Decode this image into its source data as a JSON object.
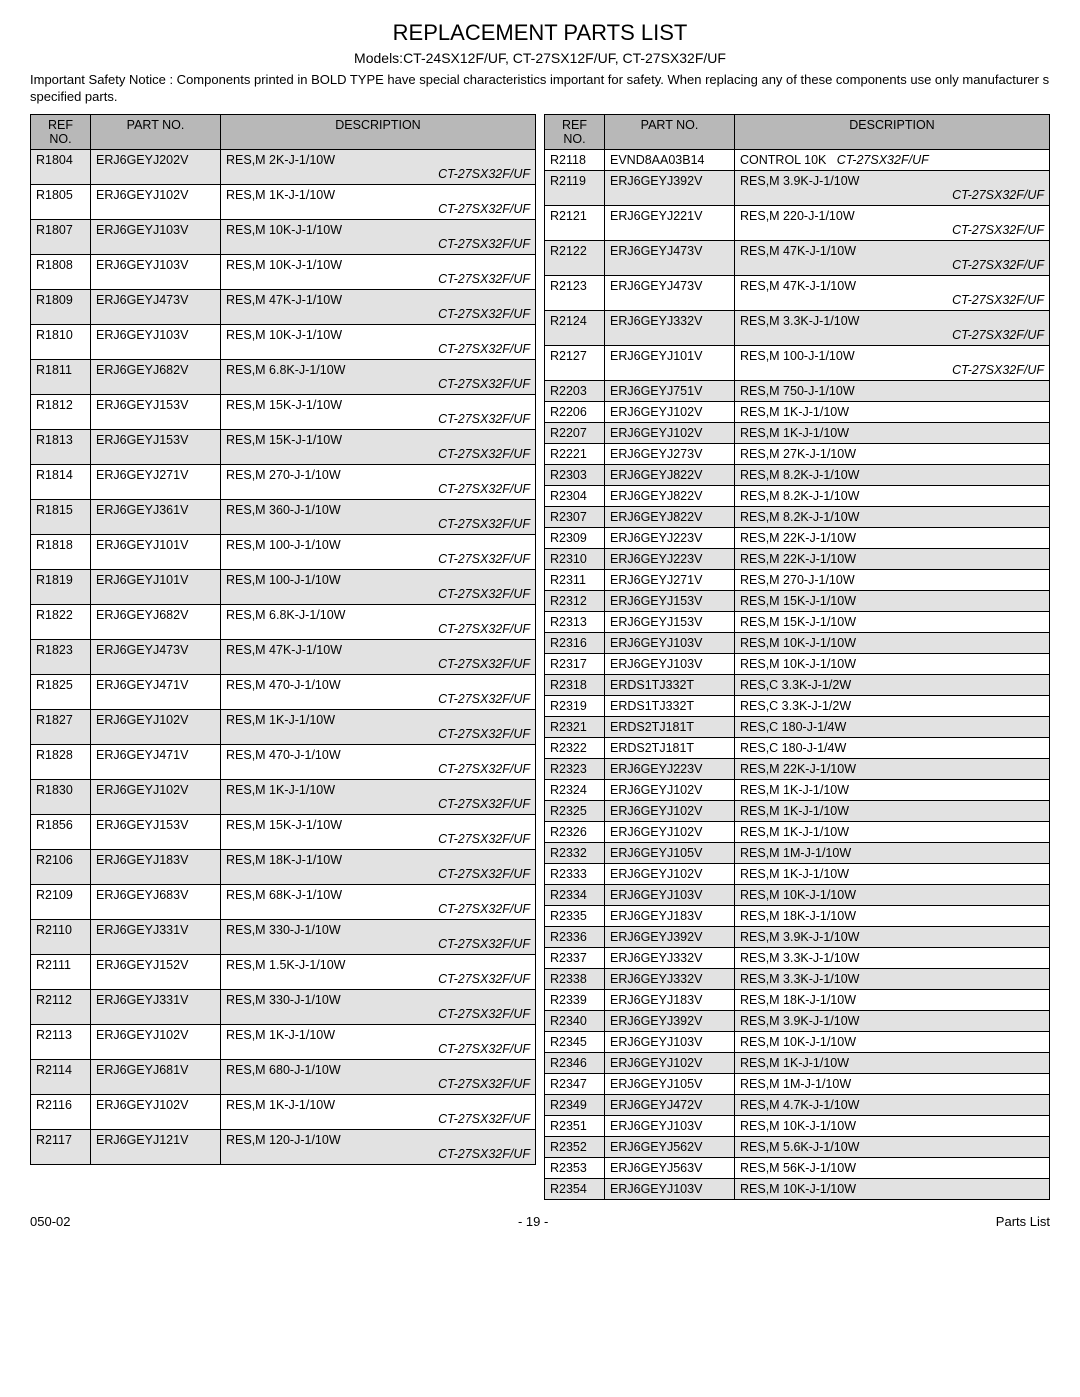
{
  "title": "REPLACEMENT PARTS LIST",
  "subtitle": "Models:CT-24SX12F/UF, CT-27SX12F/UF, CT-27SX32F/UF",
  "notice": "Important Safety Notice  : Components printed in BOLD TYPE have special characteristics important for safety.  When replacing any of these components use only manufacturer s specified parts.",
  "headers": {
    "ref": "REF NO.",
    "part": "PART NO.",
    "desc": "DESCRIPTION"
  },
  "footer": {
    "left": "050-02",
    "center": "- 19 -",
    "right": "Parts List"
  },
  "leftRows": [
    {
      "ref": "R1804",
      "part": "ERJ6GEYJ202V",
      "desc": "RES,M 2K-J-1/10W",
      "sub": "CT-27SX32F/UF",
      "shaded": true
    },
    {
      "ref": "R1805",
      "part": "ERJ6GEYJ102V",
      "desc": "RES,M 1K-J-1/10W",
      "sub": "CT-27SX32F/UF",
      "shaded": false
    },
    {
      "ref": "R1807",
      "part": "ERJ6GEYJ103V",
      "desc": "RES,M 10K-J-1/10W",
      "sub": "CT-27SX32F/UF",
      "shaded": true
    },
    {
      "ref": "R1808",
      "part": "ERJ6GEYJ103V",
      "desc": "RES,M 10K-J-1/10W",
      "sub": "CT-27SX32F/UF",
      "shaded": false
    },
    {
      "ref": "R1809",
      "part": "ERJ6GEYJ473V",
      "desc": "RES,M 47K-J-1/10W",
      "sub": "CT-27SX32F/UF",
      "shaded": true
    },
    {
      "ref": "R1810",
      "part": "ERJ6GEYJ103V",
      "desc": "RES,M 10K-J-1/10W",
      "sub": "CT-27SX32F/UF",
      "shaded": false
    },
    {
      "ref": "R1811",
      "part": "ERJ6GEYJ682V",
      "desc": "RES,M 6.8K-J-1/10W",
      "sub": "CT-27SX32F/UF",
      "shaded": true
    },
    {
      "ref": "R1812",
      "part": "ERJ6GEYJ153V",
      "desc": "RES,M 15K-J-1/10W",
      "sub": "CT-27SX32F/UF",
      "shaded": false
    },
    {
      "ref": "R1813",
      "part": "ERJ6GEYJ153V",
      "desc": "RES,M 15K-J-1/10W",
      "sub": "CT-27SX32F/UF",
      "shaded": true
    },
    {
      "ref": "R1814",
      "part": "ERJ6GEYJ271V",
      "desc": "RES,M 270-J-1/10W",
      "sub": "CT-27SX32F/UF",
      "shaded": false
    },
    {
      "ref": "R1815",
      "part": "ERJ6GEYJ361V",
      "desc": "RES,M 360-J-1/10W",
      "sub": "CT-27SX32F/UF",
      "shaded": true
    },
    {
      "ref": "R1818",
      "part": "ERJ6GEYJ101V",
      "desc": "RES,M 100-J-1/10W",
      "sub": "CT-27SX32F/UF",
      "shaded": false
    },
    {
      "ref": "R1819",
      "part": "ERJ6GEYJ101V",
      "desc": "RES,M 100-J-1/10W",
      "sub": "CT-27SX32F/UF",
      "shaded": true
    },
    {
      "ref": "R1822",
      "part": "ERJ6GEYJ682V",
      "desc": "RES,M 6.8K-J-1/10W",
      "sub": "CT-27SX32F/UF",
      "shaded": false
    },
    {
      "ref": "R1823",
      "part": "ERJ6GEYJ473V",
      "desc": "RES,M 47K-J-1/10W",
      "sub": "CT-27SX32F/UF",
      "shaded": true
    },
    {
      "ref": "R1825",
      "part": "ERJ6GEYJ471V",
      "desc": "RES,M 470-J-1/10W",
      "sub": "CT-27SX32F/UF",
      "shaded": false
    },
    {
      "ref": "R1827",
      "part": "ERJ6GEYJ102V",
      "desc": "RES,M 1K-J-1/10W",
      "sub": "CT-27SX32F/UF",
      "shaded": true
    },
    {
      "ref": "R1828",
      "part": "ERJ6GEYJ471V",
      "desc": "RES,M 470-J-1/10W",
      "sub": "CT-27SX32F/UF",
      "shaded": false
    },
    {
      "ref": "R1830",
      "part": "ERJ6GEYJ102V",
      "desc": "RES,M 1K-J-1/10W",
      "sub": "CT-27SX32F/UF",
      "shaded": true
    },
    {
      "ref": "R1856",
      "part": "ERJ6GEYJ153V",
      "desc": "RES,M 15K-J-1/10W",
      "sub": "CT-27SX32F/UF",
      "shaded": false
    },
    {
      "ref": "R2106",
      "part": "ERJ6GEYJ183V",
      "desc": "RES,M 18K-J-1/10W",
      "sub": "CT-27SX32F/UF",
      "shaded": true
    },
    {
      "ref": "R2109",
      "part": "ERJ6GEYJ683V",
      "desc": "RES,M 68K-J-1/10W",
      "sub": "CT-27SX32F/UF",
      "shaded": false
    },
    {
      "ref": "R2110",
      "part": "ERJ6GEYJ331V",
      "desc": "RES,M 330-J-1/10W",
      "sub": "CT-27SX32F/UF",
      "shaded": true
    },
    {
      "ref": "R2111",
      "part": "ERJ6GEYJ152V",
      "desc": "RES,M 1.5K-J-1/10W",
      "sub": "CT-27SX32F/UF",
      "shaded": false
    },
    {
      "ref": "R2112",
      "part": "ERJ6GEYJ331V",
      "desc": "RES,M 330-J-1/10W",
      "sub": "CT-27SX32F/UF",
      "shaded": true
    },
    {
      "ref": "R2113",
      "part": "ERJ6GEYJ102V",
      "desc": "RES,M 1K-J-1/10W",
      "sub": "CT-27SX32F/UF",
      "shaded": false
    },
    {
      "ref": "R2114",
      "part": "ERJ6GEYJ681V",
      "desc": "RES,M 680-J-1/10W",
      "sub": "CT-27SX32F/UF",
      "shaded": true
    },
    {
      "ref": "R2116",
      "part": "ERJ6GEYJ102V",
      "desc": "RES,M 1K-J-1/10W",
      "sub": "CT-27SX32F/UF",
      "shaded": false
    },
    {
      "ref": "R2117",
      "part": "ERJ6GEYJ121V",
      "desc": "RES,M 120-J-1/10W",
      "sub": "CT-27SX32F/UF",
      "shaded": true
    }
  ],
  "rightRows": [
    {
      "ref": "R2118",
      "part": "EVND8AA03B14",
      "desc": "CONTROL 10K",
      "sub": "CT-27SX32F/UF",
      "shaded": false,
      "inline": true
    },
    {
      "ref": "R2119",
      "part": "ERJ6GEYJ392V",
      "desc": "RES,M 3.9K-J-1/10W",
      "sub": "CT-27SX32F/UF",
      "shaded": true
    },
    {
      "ref": "R2121",
      "part": "ERJ6GEYJ221V",
      "desc": "RES,M 220-J-1/10W",
      "sub": "CT-27SX32F/UF",
      "shaded": false
    },
    {
      "ref": "R2122",
      "part": "ERJ6GEYJ473V",
      "desc": "RES,M 47K-J-1/10W",
      "sub": "CT-27SX32F/UF",
      "shaded": true
    },
    {
      "ref": "R2123",
      "part": "ERJ6GEYJ473V",
      "desc": "RES,M 47K-J-1/10W",
      "sub": "CT-27SX32F/UF",
      "shaded": false
    },
    {
      "ref": "R2124",
      "part": "ERJ6GEYJ332V",
      "desc": "RES,M 3.3K-J-1/10W",
      "sub": "CT-27SX32F/UF",
      "shaded": true
    },
    {
      "ref": "R2127",
      "part": "ERJ6GEYJ101V",
      "desc": "RES,M 100-J-1/10W",
      "sub": "CT-27SX32F/UF",
      "shaded": false
    },
    {
      "ref": "R2203",
      "part": "ERJ6GEYJ751V",
      "desc": "RES,M 750-J-1/10W",
      "sub": "",
      "shaded": true
    },
    {
      "ref": "R2206",
      "part": "ERJ6GEYJ102V",
      "desc": "RES,M 1K-J-1/10W",
      "sub": "",
      "shaded": false
    },
    {
      "ref": "R2207",
      "part": "ERJ6GEYJ102V",
      "desc": "RES,M 1K-J-1/10W",
      "sub": "",
      "shaded": true
    },
    {
      "ref": "R2221",
      "part": "ERJ6GEYJ273V",
      "desc": "RES,M 27K-J-1/10W",
      "sub": "",
      "shaded": false
    },
    {
      "ref": "R2303",
      "part": "ERJ6GEYJ822V",
      "desc": "RES,M 8.2K-J-1/10W",
      "sub": "",
      "shaded": true
    },
    {
      "ref": "R2304",
      "part": "ERJ6GEYJ822V",
      "desc": "RES,M 8.2K-J-1/10W",
      "sub": "",
      "shaded": false
    },
    {
      "ref": "R2307",
      "part": "ERJ6GEYJ822V",
      "desc": "RES,M 8.2K-J-1/10W",
      "sub": "",
      "shaded": true
    },
    {
      "ref": "R2309",
      "part": "ERJ6GEYJ223V",
      "desc": "RES,M 22K-J-1/10W",
      "sub": "",
      "shaded": false
    },
    {
      "ref": "R2310",
      "part": "ERJ6GEYJ223V",
      "desc": "RES,M 22K-J-1/10W",
      "sub": "",
      "shaded": true
    },
    {
      "ref": "R2311",
      "part": "ERJ6GEYJ271V",
      "desc": "RES,M 270-J-1/10W",
      "sub": "",
      "shaded": false
    },
    {
      "ref": "R2312",
      "part": "ERJ6GEYJ153V",
      "desc": "RES,M 15K-J-1/10W",
      "sub": "",
      "shaded": true
    },
    {
      "ref": "R2313",
      "part": "ERJ6GEYJ153V",
      "desc": "RES,M 15K-J-1/10W",
      "sub": "",
      "shaded": false
    },
    {
      "ref": "R2316",
      "part": "ERJ6GEYJ103V",
      "desc": "RES,M 10K-J-1/10W",
      "sub": "",
      "shaded": true
    },
    {
      "ref": "R2317",
      "part": "ERJ6GEYJ103V",
      "desc": "RES,M 10K-J-1/10W",
      "sub": "",
      "shaded": false
    },
    {
      "ref": "R2318",
      "part": "ERDS1TJ332T",
      "desc": "RES,C 3.3K-J-1/2W",
      "sub": "",
      "shaded": true
    },
    {
      "ref": "R2319",
      "part": "ERDS1TJ332T",
      "desc": "RES,C 3.3K-J-1/2W",
      "sub": "",
      "shaded": false
    },
    {
      "ref": "R2321",
      "part": "ERDS2TJ181T",
      "desc": "RES,C 180-J-1/4W",
      "sub": "",
      "shaded": true
    },
    {
      "ref": "R2322",
      "part": "ERDS2TJ181T",
      "desc": "RES,C 180-J-1/4W",
      "sub": "",
      "shaded": false
    },
    {
      "ref": "R2323",
      "part": "ERJ6GEYJ223V",
      "desc": "RES,M 22K-J-1/10W",
      "sub": "",
      "shaded": true
    },
    {
      "ref": "R2324",
      "part": "ERJ6GEYJ102V",
      "desc": "RES,M 1K-J-1/10W",
      "sub": "",
      "shaded": false
    },
    {
      "ref": "R2325",
      "part": "ERJ6GEYJ102V",
      "desc": "RES,M 1K-J-1/10W",
      "sub": "",
      "shaded": true
    },
    {
      "ref": "R2326",
      "part": "ERJ6GEYJ102V",
      "desc": "RES,M 1K-J-1/10W",
      "sub": "",
      "shaded": false
    },
    {
      "ref": "R2332",
      "part": "ERJ6GEYJ105V",
      "desc": "RES,M 1M-J-1/10W",
      "sub": "",
      "shaded": true
    },
    {
      "ref": "R2333",
      "part": "ERJ6GEYJ102V",
      "desc": "RES,M 1K-J-1/10W",
      "sub": "",
      "shaded": false
    },
    {
      "ref": "R2334",
      "part": "ERJ6GEYJ103V",
      "desc": "RES,M 10K-J-1/10W",
      "sub": "",
      "shaded": true
    },
    {
      "ref": "R2335",
      "part": "ERJ6GEYJ183V",
      "desc": "RES,M 18K-J-1/10W",
      "sub": "",
      "shaded": false
    },
    {
      "ref": "R2336",
      "part": "ERJ6GEYJ392V",
      "desc": "RES,M 3.9K-J-1/10W",
      "sub": "",
      "shaded": true
    },
    {
      "ref": "R2337",
      "part": "ERJ6GEYJ332V",
      "desc": "RES,M 3.3K-J-1/10W",
      "sub": "",
      "shaded": false
    },
    {
      "ref": "R2338",
      "part": "ERJ6GEYJ332V",
      "desc": "RES,M 3.3K-J-1/10W",
      "sub": "",
      "shaded": true
    },
    {
      "ref": "R2339",
      "part": "ERJ6GEYJ183V",
      "desc": "RES,M 18K-J-1/10W",
      "sub": "",
      "shaded": false
    },
    {
      "ref": "R2340",
      "part": "ERJ6GEYJ392V",
      "desc": "RES,M 3.9K-J-1/10W",
      "sub": "",
      "shaded": true
    },
    {
      "ref": "R2345",
      "part": "ERJ6GEYJ103V",
      "desc": "RES,M 10K-J-1/10W",
      "sub": "",
      "shaded": false
    },
    {
      "ref": "R2346",
      "part": "ERJ6GEYJ102V",
      "desc": "RES,M 1K-J-1/10W",
      "sub": "",
      "shaded": true
    },
    {
      "ref": "R2347",
      "part": "ERJ6GEYJ105V",
      "desc": "RES,M 1M-J-1/10W",
      "sub": "",
      "shaded": false
    },
    {
      "ref": "R2349",
      "part": "ERJ6GEYJ472V",
      "desc": "RES,M 4.7K-J-1/10W",
      "sub": "",
      "shaded": true
    },
    {
      "ref": "R2351",
      "part": "ERJ6GEYJ103V",
      "desc": "RES,M 10K-J-1/10W",
      "sub": "",
      "shaded": false
    },
    {
      "ref": "R2352",
      "part": "ERJ6GEYJ562V",
      "desc": "RES,M 5.6K-J-1/10W",
      "sub": "",
      "shaded": true
    },
    {
      "ref": "R2353",
      "part": "ERJ6GEYJ563V",
      "desc": "RES,M 56K-J-1/10W",
      "sub": "",
      "shaded": false
    },
    {
      "ref": "R2354",
      "part": "ERJ6GEYJ103V",
      "desc": "RES,M 10K-J-1/10W",
      "sub": "",
      "shaded": true
    }
  ]
}
